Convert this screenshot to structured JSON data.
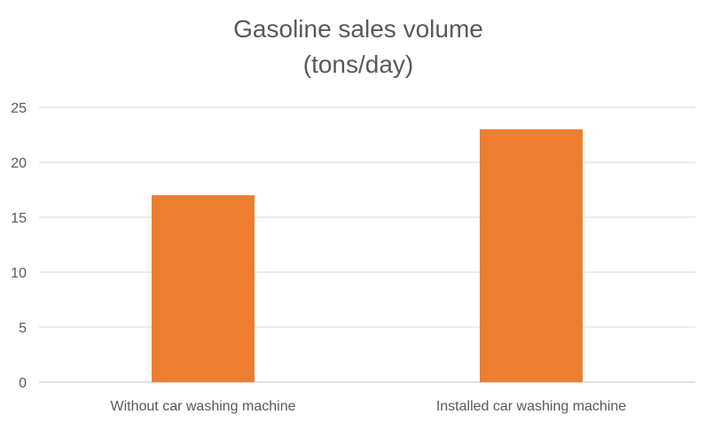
{
  "chart_data": {
    "type": "bar",
    "title_lines": [
      "Gasoline sales volume",
      "(tons/day)"
    ],
    "categories": [
      "Without car washing machine",
      "Installed car washing machine"
    ],
    "values": [
      17,
      23
    ],
    "xlabel": "",
    "ylabel": "",
    "ylim": [
      0,
      25
    ],
    "yticks": [
      "0",
      "5",
      "10",
      "15",
      "20",
      "25"
    ],
    "grid": true,
    "legend": "none",
    "bar_color": "#ED7D31"
  }
}
